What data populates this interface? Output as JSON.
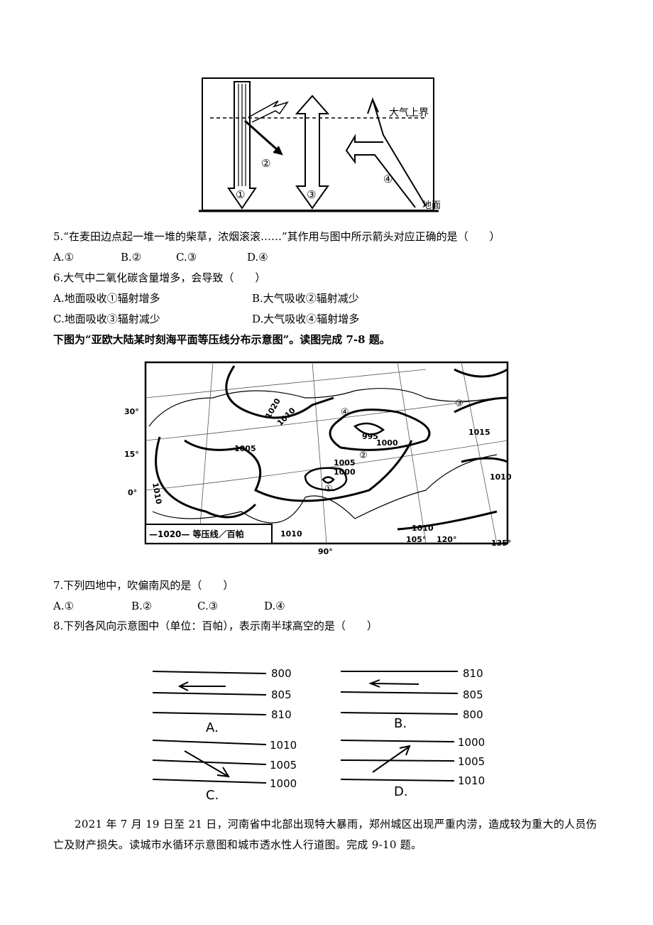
{
  "figure1": {
    "top_boundary": "大气上界",
    "ground": "地面",
    "arrows": [
      "①",
      "②",
      "③",
      "④"
    ]
  },
  "q5": {
    "stem": "5.“在麦田边点起一堆一堆的柴草，浓烟滚滚……”其作用与图中所示箭头对应正确的是（　　）",
    "options": [
      "A.①",
      "B.②",
      "C.③",
      "D.④"
    ]
  },
  "q6": {
    "stem": "6.大气中二氧化碳含量增多，会导致（　　）",
    "options": [
      "A.地面吸收①辐射增多",
      "B.大气吸收②辐射减少",
      "C.地面吸收③辐射减少",
      "D.大气吸收④辐射增多"
    ]
  },
  "intro_7_8": "下图为“亚欧大陆某时刻海平面等压线分布示意图”。读图完成 7-8 题。",
  "map": {
    "lat_labels": [
      "30°",
      "15°",
      "0°"
    ],
    "lon_labels": [
      "90°",
      "105°",
      "120°",
      "135°"
    ],
    "isobar_labels": [
      "1020",
      "1010",
      "1005",
      "1010",
      "995",
      "1000",
      "1005",
      "1000",
      "1015",
      "1010",
      "1010",
      "1010"
    ],
    "points": [
      "①",
      "②",
      "③",
      "④"
    ],
    "legend": "—1020— 等压线／百帕"
  },
  "q7": {
    "stem": "7.下列四地中，吹偏南风的是（　　）",
    "options": [
      "A.①",
      "B.②",
      "C.③",
      "D.④"
    ]
  },
  "q8": {
    "stem": "8.下列各风向示意图中（单位：百帕），表示南半球高空的是（　　）"
  },
  "wind_figure": {
    "panels": [
      {
        "label": "A.",
        "isobars": [
          "800",
          "805",
          "810"
        ]
      },
      {
        "label": "B.",
        "isobars": [
          "810",
          "805",
          "800"
        ]
      },
      {
        "label": "C.",
        "isobars": [
          "1010",
          "1005",
          "1000"
        ]
      },
      {
        "label": "D.",
        "isobars": [
          "1000",
          "1005",
          "1010"
        ]
      }
    ]
  },
  "paragraph": "2021 年 7 月 19 日至 21 日，河南省中北部出现特大暴雨，郑州城区出现严重内涝，造成较为重大的人员伤亡及财产损失。读城市水循环示意图和城市透水性人行道图。完成 9-10 题。"
}
